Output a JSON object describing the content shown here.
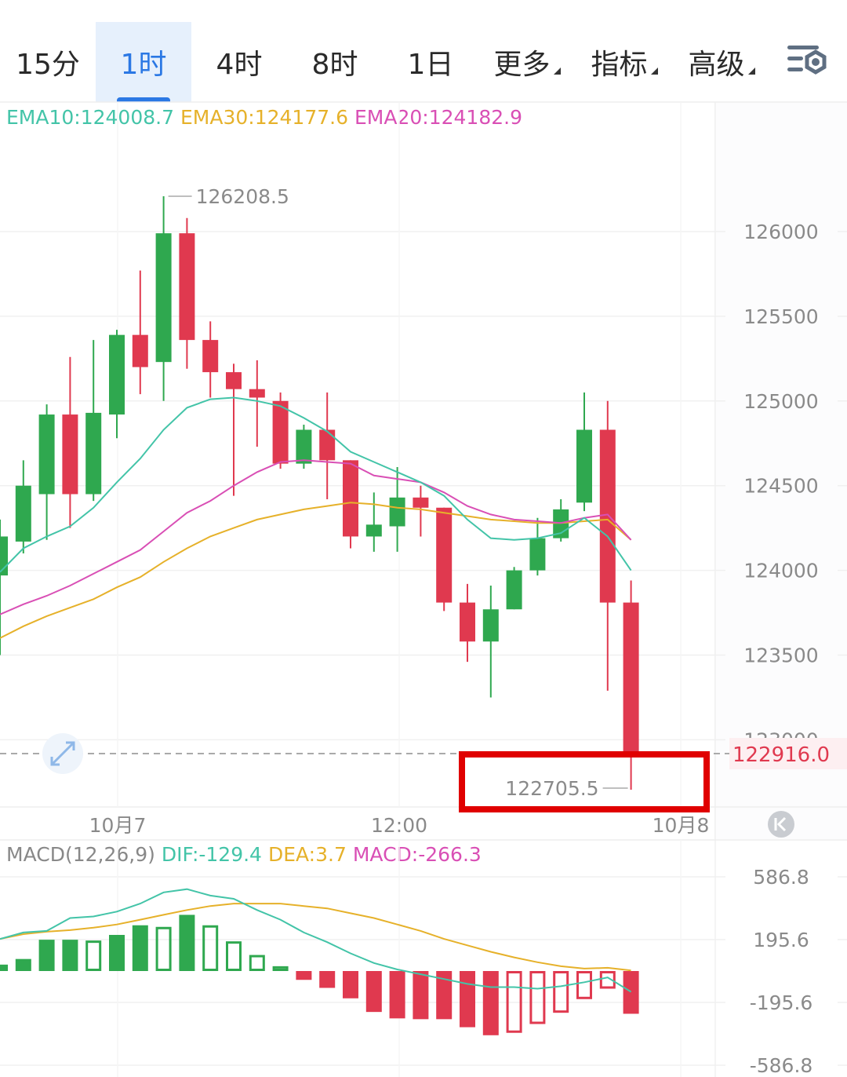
{
  "tabs": [
    {
      "label": "15分",
      "active": false
    },
    {
      "label": "1时",
      "active": true
    },
    {
      "label": "4时",
      "active": false
    },
    {
      "label": "8时",
      "active": false
    },
    {
      "label": "1日",
      "active": false
    },
    {
      "label": "更多",
      "active": false,
      "dropdown": true
    },
    {
      "label": "指标",
      "active": false,
      "dropdown": true
    },
    {
      "label": "高级",
      "active": false,
      "dropdown": true
    }
  ],
  "settings_icon": "chart-settings-icon",
  "colors": {
    "up": "#2fa84f",
    "down": "#e0394f",
    "ema10": "#43c4a8",
    "ema30": "#e6b12a",
    "ema20": "#d94fb5",
    "highlight": "#e00000"
  },
  "chart_data": [
    {
      "type": "candlestick",
      "indicators": [
        {
          "label": "EMA10:124008.7",
          "color": "#43c4a8"
        },
        {
          "label": "EMA30:124177.6",
          "color": "#e6b12a"
        },
        {
          "label": "EMA20:124182.9",
          "color": "#d94fb5"
        }
      ],
      "y_ticks": [
        "126000",
        "125500",
        "125000",
        "124500",
        "124000",
        "123500",
        "123000"
      ],
      "ylim": [
        122500,
        126650
      ],
      "x_ticks": [
        "10月7",
        "12:00",
        "10月8"
      ],
      "current_price": "122916.0",
      "current_value": 122916.0,
      "high_label": "126208.5",
      "low_label": "122705.5",
      "candles": [
        {
          "o": 123970,
          "c": 124200,
          "h": 124300,
          "l": 123500
        },
        {
          "o": 124170,
          "c": 124500,
          "h": 124650,
          "l": 124100
        },
        {
          "o": 124450,
          "c": 124920,
          "h": 124980,
          "l": 124180
        },
        {
          "o": 124920,
          "c": 124450,
          "h": 125260,
          "l": 124250
        },
        {
          "o": 124450,
          "c": 124930,
          "h": 125360,
          "l": 124410
        },
        {
          "o": 124920,
          "c": 125390,
          "h": 125420,
          "l": 124780
        },
        {
          "o": 125390,
          "c": 125200,
          "h": 125770,
          "l": 125040
        },
        {
          "o": 125230,
          "c": 125990,
          "h": 126208.5,
          "l": 125000
        },
        {
          "o": 125990,
          "c": 125360,
          "h": 126080,
          "l": 125190
        },
        {
          "o": 125360,
          "c": 125170,
          "h": 125470,
          "l": 125020
        },
        {
          "o": 125170,
          "c": 125070,
          "h": 125220,
          "l": 124440
        },
        {
          "o": 125070,
          "c": 125020,
          "h": 125240,
          "l": 124730
        },
        {
          "o": 125000,
          "c": 124630,
          "h": 125050,
          "l": 124600
        },
        {
          "o": 124630,
          "c": 124830,
          "h": 124860,
          "l": 124600
        },
        {
          "o": 124830,
          "c": 124650,
          "h": 125050,
          "l": 124420
        },
        {
          "o": 124650,
          "c": 124200,
          "h": 124650,
          "l": 124130
        },
        {
          "o": 124200,
          "c": 124270,
          "h": 124460,
          "l": 124110
        },
        {
          "o": 124260,
          "c": 124430,
          "h": 124610,
          "l": 124110
        },
        {
          "o": 124430,
          "c": 124370,
          "h": 124500,
          "l": 124200
        },
        {
          "o": 124370,
          "c": 123810,
          "h": 124370,
          "l": 123760
        },
        {
          "o": 123810,
          "c": 123580,
          "h": 123920,
          "l": 123460
        },
        {
          "o": 123580,
          "c": 123770,
          "h": 123910,
          "l": 123250
        },
        {
          "o": 123770,
          "c": 124000,
          "h": 124020,
          "l": 123770
        },
        {
          "o": 124000,
          "c": 124190,
          "h": 124310,
          "l": 123970
        },
        {
          "o": 124190,
          "c": 124360,
          "h": 124420,
          "l": 124170
        },
        {
          "o": 124400,
          "c": 124830,
          "h": 125050,
          "l": 124350
        },
        {
          "o": 124830,
          "c": 123810,
          "h": 125000,
          "l": 123290
        },
        {
          "o": 123810,
          "c": 122916,
          "h": 123940,
          "l": 122705.5
        }
      ],
      "ema10": [
        123990,
        124130,
        124200,
        124260,
        124370,
        124520,
        124660,
        124830,
        124960,
        125010,
        125020,
        125000,
        124970,
        124900,
        124820,
        124700,
        124640,
        124580,
        124520,
        124440,
        124300,
        124190,
        124180,
        124190,
        124220,
        124310,
        124200,
        124000
      ],
      "ema20": [
        123740,
        123800,
        123850,
        123910,
        123980,
        124050,
        124120,
        124230,
        124340,
        124410,
        124500,
        124580,
        124640,
        124650,
        124640,
        124630,
        124560,
        124540,
        124520,
        124460,
        124380,
        124330,
        124300,
        124290,
        124280,
        124310,
        124330,
        124180
      ],
      "ema30": [
        123600,
        123670,
        123730,
        123780,
        123830,
        123900,
        123960,
        124050,
        124130,
        124200,
        124250,
        124300,
        124330,
        124360,
        124380,
        124400,
        124390,
        124370,
        124360,
        124340,
        124320,
        124300,
        124290,
        124280,
        124280,
        124290,
        124300,
        124180
      ]
    },
    {
      "type": "macd",
      "label": "MACD(12,26,9)",
      "indicators": [
        {
          "label": "DIF:-129.4",
          "color": "#43c4a8"
        },
        {
          "label": "DEA:3.7",
          "color": "#e6b12a"
        },
        {
          "label": "MACD:-266.3",
          "color": "#d94fb5"
        }
      ],
      "y_ticks": [
        "586.8",
        "195.6",
        "-195.6",
        "-586.8"
      ],
      "ylim": [
        -586.8,
        586.8
      ],
      "histogram": [
        40,
        75,
        195,
        195,
        190,
        225,
        285,
        275,
        350,
        285,
        185,
        100,
        30,
        -55,
        -105,
        -170,
        -255,
        -295,
        -300,
        -300,
        -350,
        -400,
        -385,
        -330,
        -260,
        -175,
        -110,
        -266.3
      ],
      "dif": [
        200,
        240,
        250,
        330,
        340,
        370,
        420,
        490,
        510,
        470,
        450,
        380,
        320,
        240,
        180,
        110,
        50,
        10,
        -20,
        -50,
        -80,
        -100,
        -100,
        -110,
        -95,
        -70,
        -40,
        -129.4
      ],
      "dea": [
        200,
        230,
        245,
        255,
        270,
        290,
        320,
        350,
        380,
        405,
        420,
        420,
        420,
        405,
        390,
        360,
        330,
        290,
        250,
        200,
        160,
        120,
        85,
        55,
        30,
        15,
        20,
        3.7
      ]
    }
  ]
}
